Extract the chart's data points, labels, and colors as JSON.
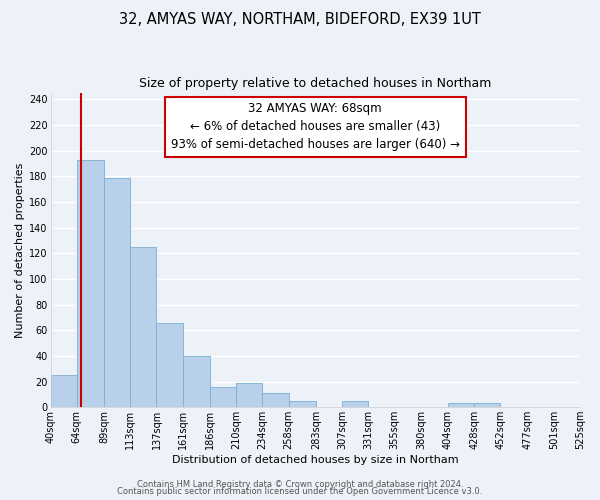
{
  "title": "32, AMYAS WAY, NORTHAM, BIDEFORD, EX39 1UT",
  "subtitle": "Size of property relative to detached houses in Northam",
  "xlabel": "Distribution of detached houses by size in Northam",
  "ylabel": "Number of detached properties",
  "bin_edges": [
    40,
    64,
    89,
    113,
    137,
    161,
    186,
    210,
    234,
    258,
    283,
    307,
    331,
    355,
    380,
    404,
    428,
    452,
    477,
    501,
    525
  ],
  "bin_labels": [
    "40sqm",
    "64sqm",
    "89sqm",
    "113sqm",
    "137sqm",
    "161sqm",
    "186sqm",
    "210sqm",
    "234sqm",
    "258sqm",
    "283sqm",
    "307sqm",
    "331sqm",
    "355sqm",
    "380sqm",
    "404sqm",
    "428sqm",
    "452sqm",
    "477sqm",
    "501sqm",
    "525sqm"
  ],
  "counts": [
    25,
    193,
    179,
    125,
    66,
    40,
    16,
    19,
    11,
    5,
    0,
    5,
    0,
    0,
    0,
    3,
    3,
    0,
    0,
    0
  ],
  "bar_color": "#b8d0ea",
  "bar_edge_color": "#7aafd4",
  "vline_x": 68,
  "vline_color": "#cc0000",
  "annotation_line1": "32 AMYAS WAY: 68sqm",
  "annotation_line2": "← 6% of detached houses are smaller (43)",
  "annotation_line3": "93% of semi-detached houses are larger (640) →",
  "box_edge_color": "#cc0000",
  "ylim": [
    0,
    245
  ],
  "yticks": [
    0,
    20,
    40,
    60,
    80,
    100,
    120,
    140,
    160,
    180,
    200,
    220,
    240
  ],
  "footer_line1": "Contains HM Land Registry data © Crown copyright and database right 2024.",
  "footer_line2": "Contains public sector information licensed under the Open Government Licence v3.0.",
  "bg_color": "#edf2f9",
  "grid_color": "#d8e4f0",
  "title_fontsize": 10.5,
  "subtitle_fontsize": 9,
  "axis_label_fontsize": 8,
  "tick_fontsize": 7,
  "annotation_fontsize": 8.5,
  "footer_fontsize": 6
}
